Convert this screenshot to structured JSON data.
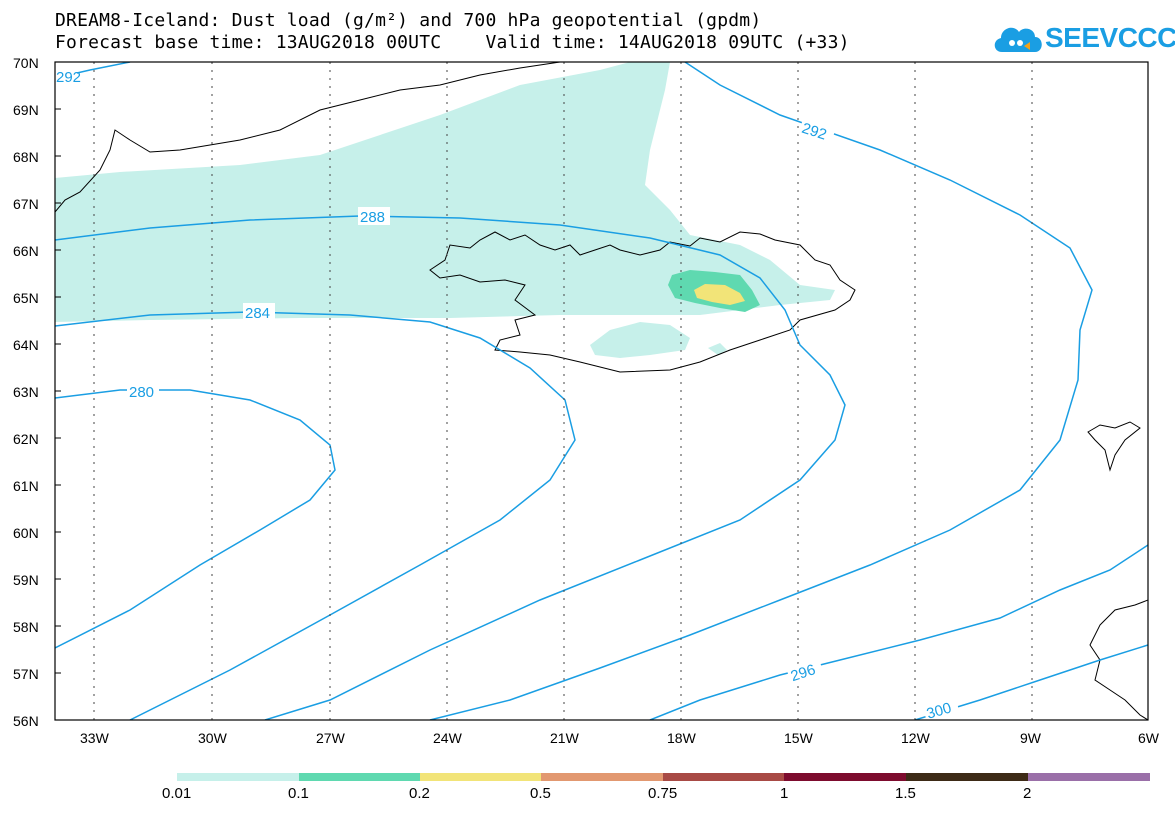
{
  "title": {
    "line1": "DREAM8-Iceland: Dust load (g/m²) and 700 hPa geopotential (gpdm)",
    "line2": "Forecast base time: 13AUG2018 00UTC    Valid time: 14AUG2018 09UTC (+33)"
  },
  "logo": {
    "text": "SEEVCCC",
    "icon": "cloud-icon",
    "color": "#1a9ee3"
  },
  "map": {
    "lon_range": [
      -34.5,
      -6
    ],
    "lat_range": [
      56,
      70
    ],
    "lat_labels": [
      "70N",
      "69N",
      "68N",
      "67N",
      "66N",
      "65N",
      "64N",
      "63N",
      "62N",
      "61N",
      "60N",
      "59N",
      "58N",
      "57N",
      "56N"
    ],
    "lon_labels": [
      "33W",
      "30W",
      "27W",
      "24W",
      "21W",
      "18W",
      "15W",
      "12W",
      "9W",
      "6W"
    ],
    "contour_color": "#1a9ee3",
    "contour_labels": [
      "292",
      "288",
      "284",
      "280",
      "292",
      "296",
      "300"
    ]
  },
  "colorbar": {
    "colors": [
      "#c6f0ea",
      "#5fd9b0",
      "#f2e478",
      "#e29870",
      "#a84a45",
      "#7d0b2e",
      "#3d2a16",
      "#9a6fa8"
    ],
    "labels": [
      "0.01",
      "0.1",
      "0.2",
      "0.5",
      "0.75",
      "1",
      "1.5",
      "2"
    ]
  }
}
